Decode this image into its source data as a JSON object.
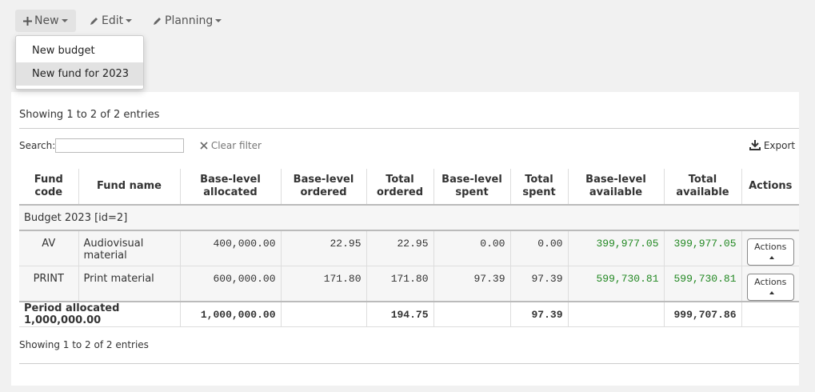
{
  "toolbar": {
    "buttons": [
      "New",
      "Edit",
      "Planning"
    ]
  },
  "dropdown": {
    "items": [
      "New budget",
      "New fund for 2023"
    ]
  },
  "info_top": "Showing 1 to 2 of 2 entries",
  "search": {
    "label": "Search:",
    "clear": "Clear filter",
    "export": "Export"
  },
  "table": {
    "headers": [
      "Fund code",
      "Fund name",
      "Base-level allocated",
      "Base-level ordered",
      "Total ordered",
      "Base-level spent",
      "Total spent",
      "Base-level available",
      "Total available",
      "Actions"
    ],
    "group": "Budget 2023 [id=2]",
    "rows": [
      [
        "AV",
        "Audiovisual material",
        "400,000.00",
        "22.95",
        "22.95",
        "0.00",
        "0.00",
        "399,977.05",
        "399,977.05",
        "Actions"
      ],
      [
        "PRINT",
        "Print material",
        "600,000.00",
        "171.80",
        "171.80",
        "97.39",
        "97.39",
        "599,730.81",
        "599,730.81",
        "Actions"
      ]
    ],
    "footer": [
      "Period allocated 1,000,000.00",
      "1,000,000.00",
      null,
      "194.75",
      null,
      "97.39",
      null,
      "999,707.86",
      null
    ]
  },
  "info_bottom": "Showing 1 to 2 of 2 entries"
}
